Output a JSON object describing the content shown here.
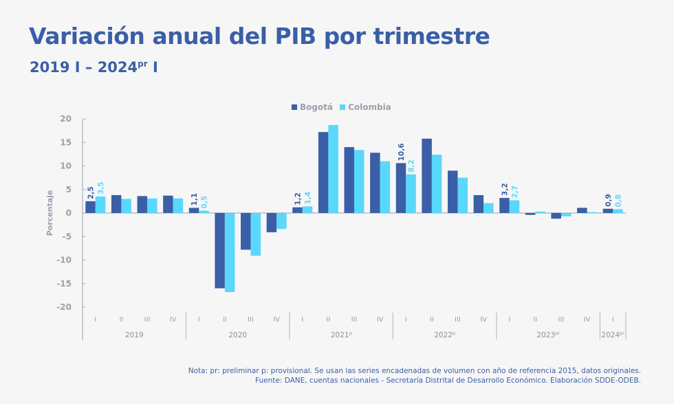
{
  "header": {
    "title": "Variación anual del PIB por trimestre",
    "subtitle_main": "2019 I – 2024",
    "subtitle_sup": "pr",
    "subtitle_end": " I"
  },
  "legend": {
    "items": [
      {
        "label": "Bogotá",
        "color": "#3a5fa6"
      },
      {
        "label": "Colombia",
        "color": "#5ad8fb"
      }
    ]
  },
  "footnote": {
    "line1": "Nota: pr: preliminar p: provisional. Se usan las series encadenadas de volumen con año de referencia 2015, datos originales.",
    "line2": "Fuente: DANE, cuentas nacionales - Secretaría Distrital de Desarrollo Económico. Elaboración SDDE-ODEB."
  },
  "chart_data": {
    "type": "bar",
    "title": "Variación anual del PIB por trimestre",
    "subtitle": "2019 I – 2024pr I",
    "xlabel": "",
    "ylabel": "Porcentaje",
    "ylim": [
      -20,
      20
    ],
    "yticks": [
      20,
      15,
      10,
      5,
      0,
      -5,
      -10,
      -15,
      -20
    ],
    "grid": false,
    "legend_position": "top-center",
    "groups": [
      {
        "year": "2019",
        "quarters": [
          "I",
          "II",
          "III",
          "IV"
        ]
      },
      {
        "year": "2020",
        "quarters": [
          "I",
          "II",
          "III",
          "IV"
        ]
      },
      {
        "year": "2021p",
        "quarters": [
          "I",
          "II",
          "III",
          "IV"
        ]
      },
      {
        "year": "2022p",
        "quarters": [
          "I",
          "II",
          "III",
          "IV"
        ]
      },
      {
        "year": "2023pr",
        "quarters": [
          "I",
          "II",
          "III",
          "IV"
        ]
      },
      {
        "year": "2024pr",
        "quarters": [
          "I"
        ]
      }
    ],
    "categories": [
      "2019 I",
      "2019 II",
      "2019 III",
      "2019 IV",
      "2020 I",
      "2020 II",
      "2020 III",
      "2020 IV",
      "2021 I",
      "2021 II",
      "2021 III",
      "2021 IV",
      "2022 I",
      "2022 II",
      "2022 III",
      "2022 IV",
      "2023 I",
      "2023 II",
      "2023 III",
      "2023 IV",
      "2024 I"
    ],
    "series": [
      {
        "name": "Bogotá",
        "color": "#3a5fa6",
        "values": [
          2.5,
          3.8,
          3.6,
          3.7,
          1.1,
          -16.0,
          -7.8,
          -4.1,
          1.2,
          17.2,
          14.0,
          12.8,
          10.6,
          15.8,
          9.0,
          3.8,
          3.2,
          -0.4,
          -1.2,
          1.1,
          0.9
        ],
        "labels": {
          "0": "2,5",
          "4": "1,1",
          "8": "1,2",
          "12": "10,6",
          "16": "3,2",
          "20": "0,9"
        }
      },
      {
        "name": "Colombia",
        "color": "#5ad8fb",
        "values": [
          3.5,
          3.0,
          3.1,
          3.1,
          0.5,
          -16.8,
          -9.1,
          -3.4,
          1.4,
          18.7,
          13.4,
          11.0,
          8.2,
          12.4,
          7.5,
          2.1,
          2.7,
          0.3,
          -0.7,
          0.2,
          0.8
        ],
        "labels": {
          "0": "3,5",
          "4": "0,5",
          "8": "1,4",
          "12": "8,2",
          "16": "2,7",
          "20": "0,8"
        }
      }
    ]
  }
}
